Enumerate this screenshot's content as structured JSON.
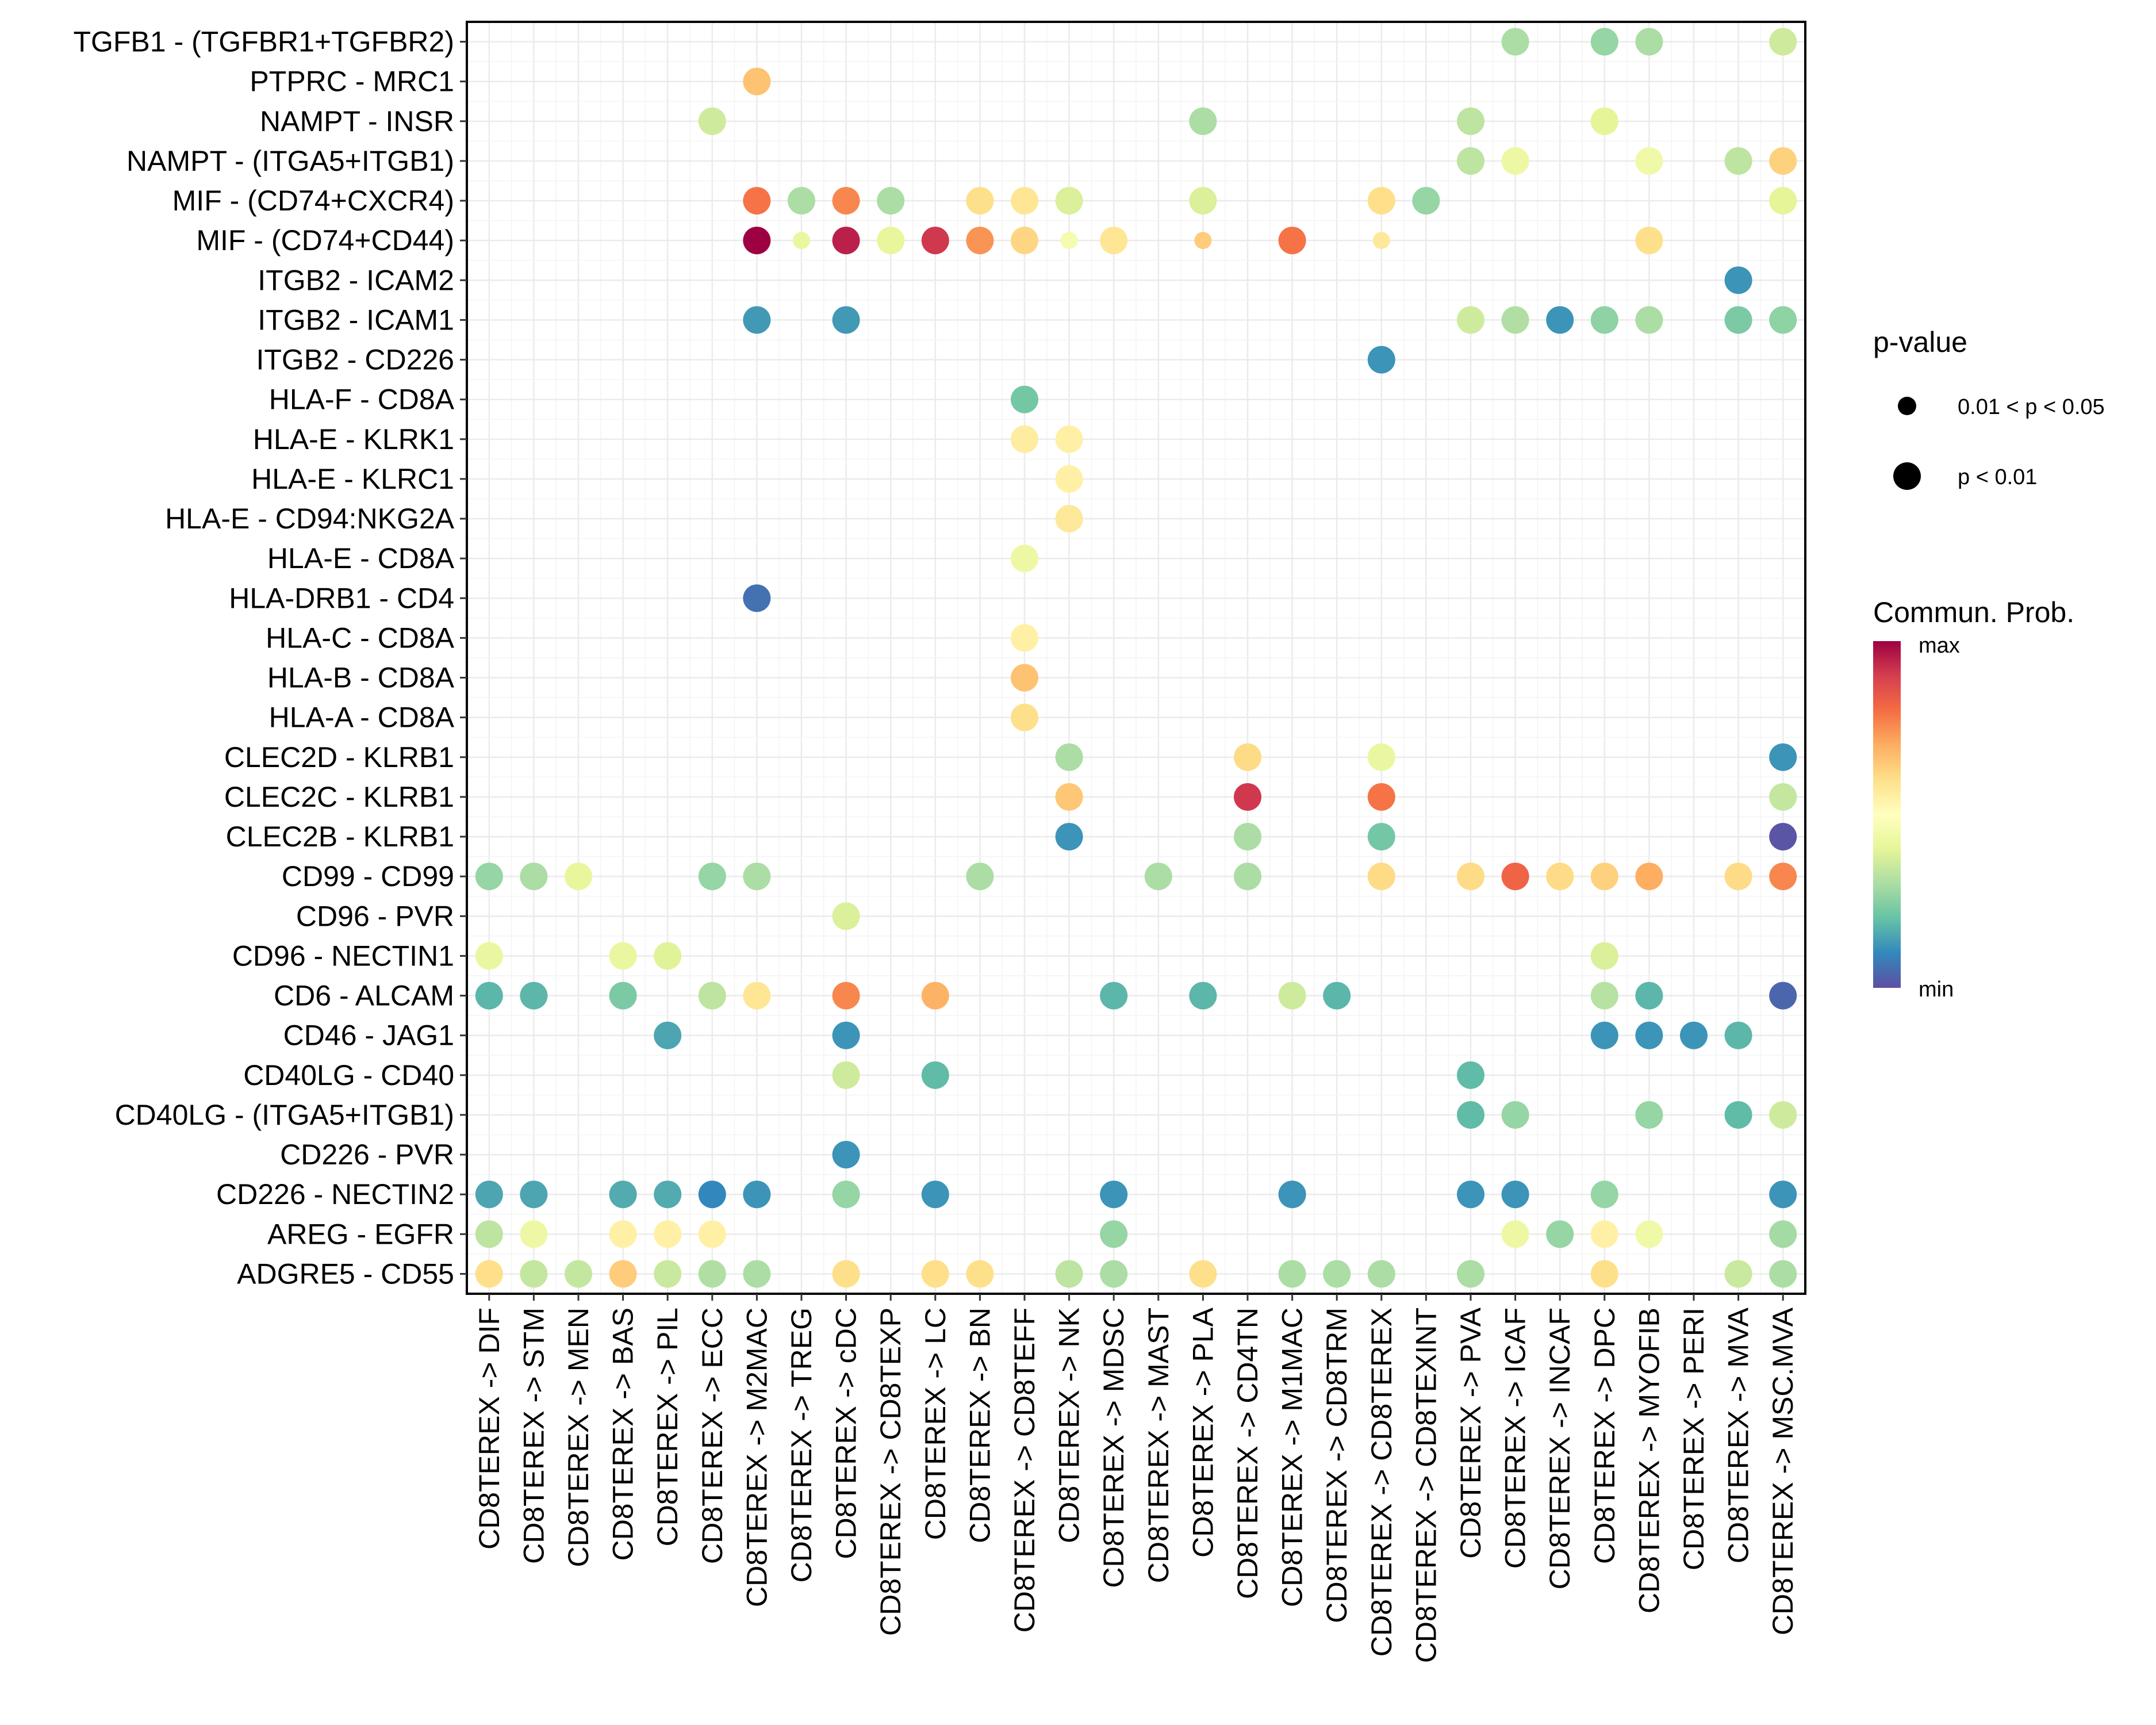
{
  "chart_data": {
    "type": "scatter",
    "subtype": "dot-matrix",
    "title": "",
    "xlabel": "",
    "ylabel": "",
    "grid": true,
    "color_scale": {
      "name": "Spectral",
      "title": "Commun. Prob.",
      "min_label": "min",
      "max_label": "max",
      "stops": [
        "#5E4FA2",
        "#3288BD",
        "#66C2A5",
        "#ABDDA4",
        "#E6F598",
        "#FFFFBF",
        "#FEE08B",
        "#FDAE61",
        "#F46D43",
        "#D53E4F",
        "#9E0142"
      ]
    },
    "size_legend": {
      "title": "p-value",
      "entries": [
        {
          "label": "0.01 < p < 0.05",
          "key": "small"
        },
        {
          "label": "p < 0.01",
          "key": "large"
        }
      ]
    },
    "legend_position": "right",
    "rows": [
      "TGFB1 - (TGFBR1+TGFBR2)",
      "PTPRC - MRC1",
      "NAMPT - INSR",
      "NAMPT - (ITGA5+ITGB1)",
      "MIF - (CD74+CXCR4)",
      "MIF - (CD74+CD44)",
      "ITGB2 - ICAM2",
      "ITGB2 - ICAM1",
      "ITGB2 - CD226",
      "HLA-F - CD8A",
      "HLA-E - KLRK1",
      "HLA-E - KLRC1",
      "HLA-E - CD94:NKG2A",
      "HLA-E - CD8A",
      "HLA-DRB1 - CD4",
      "HLA-C - CD8A",
      "HLA-B - CD8A",
      "HLA-A - CD8A",
      "CLEC2D - KLRB1",
      "CLEC2C - KLRB1",
      "CLEC2B - KLRB1",
      "CD99 - CD99",
      "CD96 - PVR",
      "CD96 - NECTIN1",
      "CD6 - ALCAM",
      "CD46 - JAG1",
      "CD40LG - CD40",
      "CD40LG - (ITGA5+ITGB1)",
      "CD226 - PVR",
      "CD226 - NECTIN2",
      "AREG - EGFR",
      "ADGRE5 - CD55"
    ],
    "columns": [
      "CD8TEREX -> DIF",
      "CD8TEREX -> STM",
      "CD8TEREX -> MEN",
      "CD8TEREX -> BAS",
      "CD8TEREX -> PIL",
      "CD8TEREX -> ECC",
      "CD8TEREX -> M2MAC",
      "CD8TEREX -> TREG",
      "CD8TEREX -> cDC",
      "CD8TEREX -> CD8TEXP",
      "CD8TEREX -> LC",
      "CD8TEREX -> BN",
      "CD8TEREX -> CD8TEFF",
      "CD8TEREX -> NK",
      "CD8TEREX -> MDSC",
      "CD8TEREX -> MAST",
      "CD8TEREX -> PLA",
      "CD8TEREX -> CD4TN",
      "CD8TEREX -> M1MAC",
      "CD8TEREX -> CD8TRM",
      "CD8TEREX -> CD8TEREX",
      "CD8TEREX -> CD8TEXINT",
      "CD8TEREX -> PVA",
      "CD8TEREX -> ICAF",
      "CD8TEREX -> INCAF",
      "CD8TEREX -> DPC",
      "CD8TEREX -> MYOFIB",
      "CD8TEREX -> PERI",
      "CD8TEREX -> MVA",
      "CD8TEREX -> MSC.MVA"
    ],
    "points_format": [
      "row_index",
      "column_index",
      "commun_prob_scaled_0_to_1",
      "p_value_class"
    ],
    "points": [
      [
        0,
        23,
        0.3,
        "large"
      ],
      [
        0,
        25,
        0.27,
        "large"
      ],
      [
        0,
        26,
        0.3,
        "large"
      ],
      [
        0,
        29,
        0.36,
        "large"
      ],
      [
        1,
        6,
        0.66,
        "large"
      ],
      [
        2,
        5,
        0.36,
        "large"
      ],
      [
        2,
        16,
        0.3,
        "large"
      ],
      [
        2,
        22,
        0.33,
        "large"
      ],
      [
        2,
        25,
        0.4,
        "large"
      ],
      [
        3,
        22,
        0.33,
        "large"
      ],
      [
        3,
        23,
        0.43,
        "large"
      ],
      [
        3,
        26,
        0.44,
        "large"
      ],
      [
        3,
        28,
        0.33,
        "large"
      ],
      [
        3,
        29,
        0.63,
        "large"
      ],
      [
        4,
        6,
        0.79,
        "large"
      ],
      [
        4,
        7,
        0.3,
        "large"
      ],
      [
        4,
        8,
        0.76,
        "large"
      ],
      [
        4,
        9,
        0.3,
        "large"
      ],
      [
        4,
        11,
        0.6,
        "large"
      ],
      [
        4,
        12,
        0.58,
        "large"
      ],
      [
        4,
        13,
        0.38,
        "large"
      ],
      [
        4,
        16,
        0.38,
        "large"
      ],
      [
        4,
        20,
        0.6,
        "large"
      ],
      [
        4,
        21,
        0.27,
        "large"
      ],
      [
        4,
        29,
        0.4,
        "large"
      ],
      [
        5,
        6,
        1.0,
        "large"
      ],
      [
        5,
        7,
        0.42,
        "small"
      ],
      [
        5,
        8,
        0.95,
        "large"
      ],
      [
        5,
        9,
        0.41,
        "large"
      ],
      [
        5,
        10,
        0.91,
        "large"
      ],
      [
        5,
        11,
        0.74,
        "large"
      ],
      [
        5,
        12,
        0.62,
        "large"
      ],
      [
        5,
        13,
        0.46,
        "small"
      ],
      [
        5,
        14,
        0.58,
        "large"
      ],
      [
        5,
        16,
        0.64,
        "small"
      ],
      [
        5,
        18,
        0.79,
        "large"
      ],
      [
        5,
        20,
        0.57,
        "small"
      ],
      [
        5,
        26,
        0.6,
        "large"
      ],
      [
        6,
        28,
        0.12,
        "large"
      ],
      [
        7,
        6,
        0.13,
        "large"
      ],
      [
        7,
        8,
        0.13,
        "large"
      ],
      [
        7,
        22,
        0.36,
        "large"
      ],
      [
        7,
        23,
        0.31,
        "large"
      ],
      [
        7,
        24,
        0.12,
        "large"
      ],
      [
        7,
        25,
        0.26,
        "large"
      ],
      [
        7,
        26,
        0.3,
        "large"
      ],
      [
        7,
        28,
        0.23,
        "large"
      ],
      [
        7,
        29,
        0.26,
        "large"
      ],
      [
        8,
        20,
        0.12,
        "large"
      ],
      [
        9,
        12,
        0.22,
        "large"
      ],
      [
        10,
        12,
        0.56,
        "large"
      ],
      [
        10,
        13,
        0.55,
        "large"
      ],
      [
        11,
        13,
        0.55,
        "large"
      ],
      [
        12,
        13,
        0.57,
        "large"
      ],
      [
        13,
        12,
        0.43,
        "large"
      ],
      [
        14,
        6,
        0.06,
        "large"
      ],
      [
        15,
        12,
        0.55,
        "large"
      ],
      [
        16,
        12,
        0.66,
        "large"
      ],
      [
        17,
        12,
        0.6,
        "large"
      ],
      [
        18,
        13,
        0.3,
        "large"
      ],
      [
        18,
        17,
        0.61,
        "large"
      ],
      [
        18,
        20,
        0.42,
        "large"
      ],
      [
        18,
        29,
        0.12,
        "large"
      ],
      [
        19,
        13,
        0.65,
        "large"
      ],
      [
        19,
        17,
        0.91,
        "large"
      ],
      [
        19,
        20,
        0.79,
        "large"
      ],
      [
        19,
        29,
        0.34,
        "large"
      ],
      [
        20,
        13,
        0.12,
        "large"
      ],
      [
        20,
        17,
        0.3,
        "large"
      ],
      [
        20,
        20,
        0.22,
        "large"
      ],
      [
        20,
        29,
        0.01,
        "large"
      ],
      [
        21,
        0,
        0.27,
        "large"
      ],
      [
        21,
        1,
        0.3,
        "large"
      ],
      [
        21,
        2,
        0.41,
        "large"
      ],
      [
        21,
        5,
        0.27,
        "large"
      ],
      [
        21,
        6,
        0.3,
        "large"
      ],
      [
        21,
        11,
        0.3,
        "large"
      ],
      [
        21,
        15,
        0.3,
        "large"
      ],
      [
        21,
        17,
        0.3,
        "large"
      ],
      [
        21,
        20,
        0.61,
        "large"
      ],
      [
        21,
        22,
        0.61,
        "large"
      ],
      [
        21,
        23,
        0.82,
        "large"
      ],
      [
        21,
        24,
        0.61,
        "large"
      ],
      [
        21,
        25,
        0.63,
        "large"
      ],
      [
        21,
        26,
        0.7,
        "large"
      ],
      [
        21,
        28,
        0.61,
        "large"
      ],
      [
        21,
        29,
        0.76,
        "large"
      ],
      [
        22,
        8,
        0.38,
        "large"
      ],
      [
        23,
        0,
        0.42,
        "large"
      ],
      [
        23,
        3,
        0.42,
        "large"
      ],
      [
        23,
        4,
        0.39,
        "large"
      ],
      [
        23,
        25,
        0.38,
        "large"
      ],
      [
        24,
        0,
        0.18,
        "large"
      ],
      [
        24,
        1,
        0.18,
        "large"
      ],
      [
        24,
        3,
        0.23,
        "large"
      ],
      [
        24,
        5,
        0.33,
        "large"
      ],
      [
        24,
        6,
        0.58,
        "large"
      ],
      [
        24,
        8,
        0.76,
        "large"
      ],
      [
        24,
        10,
        0.69,
        "large"
      ],
      [
        24,
        14,
        0.18,
        "large"
      ],
      [
        24,
        16,
        0.18,
        "large"
      ],
      [
        24,
        18,
        0.36,
        "large"
      ],
      [
        24,
        19,
        0.18,
        "large"
      ],
      [
        24,
        25,
        0.32,
        "large"
      ],
      [
        24,
        26,
        0.18,
        "large"
      ],
      [
        24,
        29,
        0.04,
        "large"
      ],
      [
        25,
        4,
        0.15,
        "large"
      ],
      [
        25,
        8,
        0.12,
        "large"
      ],
      [
        25,
        25,
        0.12,
        "large"
      ],
      [
        25,
        26,
        0.12,
        "large"
      ],
      [
        25,
        27,
        0.12,
        "large"
      ],
      [
        25,
        28,
        0.18,
        "large"
      ],
      [
        26,
        8,
        0.36,
        "large"
      ],
      [
        26,
        10,
        0.19,
        "large"
      ],
      [
        26,
        22,
        0.19,
        "large"
      ],
      [
        27,
        22,
        0.19,
        "large"
      ],
      [
        27,
        23,
        0.27,
        "large"
      ],
      [
        27,
        26,
        0.27,
        "large"
      ],
      [
        27,
        28,
        0.19,
        "large"
      ],
      [
        27,
        29,
        0.36,
        "large"
      ],
      [
        28,
        8,
        0.12,
        "large"
      ],
      [
        29,
        0,
        0.15,
        "large"
      ],
      [
        29,
        1,
        0.15,
        "large"
      ],
      [
        29,
        3,
        0.16,
        "large"
      ],
      [
        29,
        4,
        0.16,
        "large"
      ],
      [
        29,
        5,
        0.1,
        "large"
      ],
      [
        29,
        6,
        0.12,
        "large"
      ],
      [
        29,
        8,
        0.27,
        "large"
      ],
      [
        29,
        10,
        0.12,
        "large"
      ],
      [
        29,
        14,
        0.12,
        "large"
      ],
      [
        29,
        18,
        0.12,
        "large"
      ],
      [
        29,
        22,
        0.12,
        "large"
      ],
      [
        29,
        23,
        0.12,
        "large"
      ],
      [
        29,
        25,
        0.27,
        "large"
      ],
      [
        29,
        29,
        0.12,
        "large"
      ],
      [
        30,
        0,
        0.33,
        "large"
      ],
      [
        30,
        1,
        0.43,
        "large"
      ],
      [
        30,
        3,
        0.55,
        "large"
      ],
      [
        30,
        4,
        0.55,
        "large"
      ],
      [
        30,
        5,
        0.55,
        "large"
      ],
      [
        30,
        14,
        0.27,
        "large"
      ],
      [
        30,
        23,
        0.43,
        "large"
      ],
      [
        30,
        24,
        0.27,
        "large"
      ],
      [
        30,
        25,
        0.55,
        "large"
      ],
      [
        30,
        26,
        0.44,
        "large"
      ],
      [
        30,
        29,
        0.29,
        "large"
      ],
      [
        31,
        0,
        0.6,
        "large"
      ],
      [
        31,
        1,
        0.34,
        "large"
      ],
      [
        31,
        2,
        0.34,
        "large"
      ],
      [
        31,
        3,
        0.64,
        "large"
      ],
      [
        31,
        4,
        0.35,
        "large"
      ],
      [
        31,
        5,
        0.31,
        "large"
      ],
      [
        31,
        6,
        0.3,
        "large"
      ],
      [
        31,
        8,
        0.6,
        "large"
      ],
      [
        31,
        10,
        0.6,
        "large"
      ],
      [
        31,
        11,
        0.6,
        "large"
      ],
      [
        31,
        13,
        0.33,
        "large"
      ],
      [
        31,
        14,
        0.3,
        "large"
      ],
      [
        31,
        16,
        0.6,
        "large"
      ],
      [
        31,
        18,
        0.3,
        "large"
      ],
      [
        31,
        19,
        0.3,
        "large"
      ],
      [
        31,
        20,
        0.3,
        "large"
      ],
      [
        31,
        22,
        0.3,
        "large"
      ],
      [
        31,
        25,
        0.6,
        "large"
      ],
      [
        31,
        28,
        0.35,
        "large"
      ],
      [
        31,
        29,
        0.3,
        "large"
      ]
    ]
  }
}
